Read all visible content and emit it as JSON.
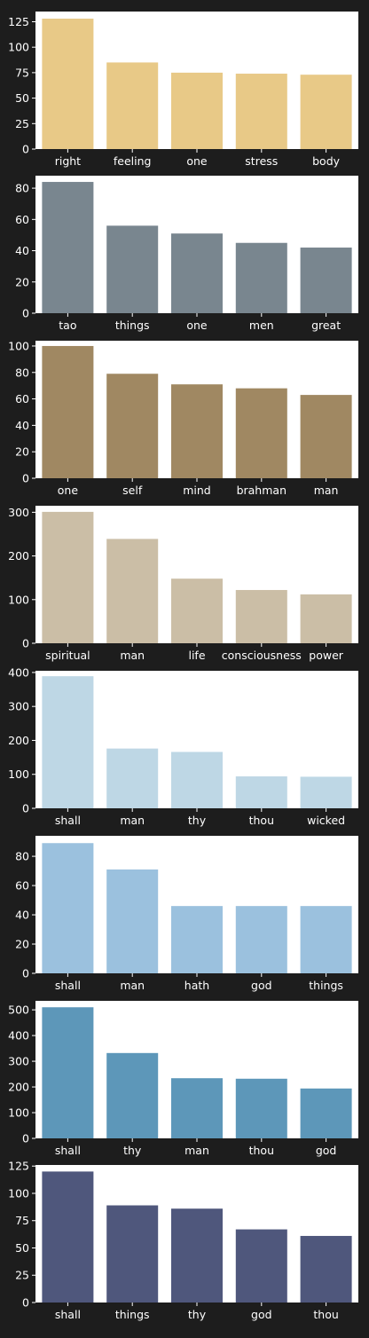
{
  "chart_data": [
    {
      "type": "bar",
      "categories": [
        "right",
        "feeling",
        "one",
        "stress",
        "body"
      ],
      "values": [
        128,
        85,
        75,
        74,
        73
      ],
      "ylim": [
        0,
        135
      ],
      "yticks": [
        0,
        25,
        50,
        75,
        100,
        125
      ],
      "color": "#e8c987"
    },
    {
      "type": "bar",
      "categories": [
        "tao",
        "things",
        "one",
        "men",
        "great"
      ],
      "values": [
        84,
        56,
        51,
        45,
        42
      ],
      "ylim": [
        0,
        88
      ],
      "yticks": [
        0,
        20,
        40,
        60,
        80
      ],
      "color": "#79868f"
    },
    {
      "type": "bar",
      "categories": [
        "one",
        "self",
        "mind",
        "brahman",
        "man"
      ],
      "values": [
        100,
        79,
        71,
        68,
        63
      ],
      "ylim": [
        0,
        104
      ],
      "yticks": [
        0,
        20,
        40,
        60,
        80,
        100
      ],
      "color": "#a08862"
    },
    {
      "type": "bar",
      "categories": [
        "spiritual",
        "man",
        "life",
        "consciousness",
        "power"
      ],
      "values": [
        301,
        239,
        148,
        122,
        112
      ],
      "ylim": [
        0,
        315
      ],
      "yticks": [
        0,
        100,
        200,
        300
      ],
      "color": "#cbbea6"
    },
    {
      "type": "bar",
      "categories": [
        "shall",
        "man",
        "thy",
        "thou",
        "wicked"
      ],
      "values": [
        389,
        176,
        166,
        94,
        93
      ],
      "ylim": [
        0,
        405
      ],
      "yticks": [
        0,
        100,
        200,
        300,
        400
      ],
      "color": "#bed7e5"
    },
    {
      "type": "bar",
      "categories": [
        "shall",
        "man",
        "hath",
        "god",
        "things"
      ],
      "values": [
        89,
        71,
        46,
        46,
        46
      ],
      "ylim": [
        0,
        94
      ],
      "yticks": [
        0,
        20,
        40,
        60,
        80
      ],
      "color": "#9bc1de"
    },
    {
      "type": "bar",
      "categories": [
        "shall",
        "thy",
        "man",
        "thou",
        "god"
      ],
      "values": [
        510,
        332,
        234,
        232,
        194
      ],
      "ylim": [
        0,
        535
      ],
      "yticks": [
        0,
        100,
        200,
        300,
        400,
        500
      ],
      "color": "#5d97b9"
    },
    {
      "type": "bar",
      "categories": [
        "shall",
        "things",
        "thy",
        "god",
        "thou"
      ],
      "values": [
        120,
        89,
        86,
        67,
        61
      ],
      "ylim": [
        0,
        126
      ],
      "yticks": [
        0,
        25,
        50,
        75,
        100,
        125
      ],
      "color": "#4f577c"
    }
  ]
}
